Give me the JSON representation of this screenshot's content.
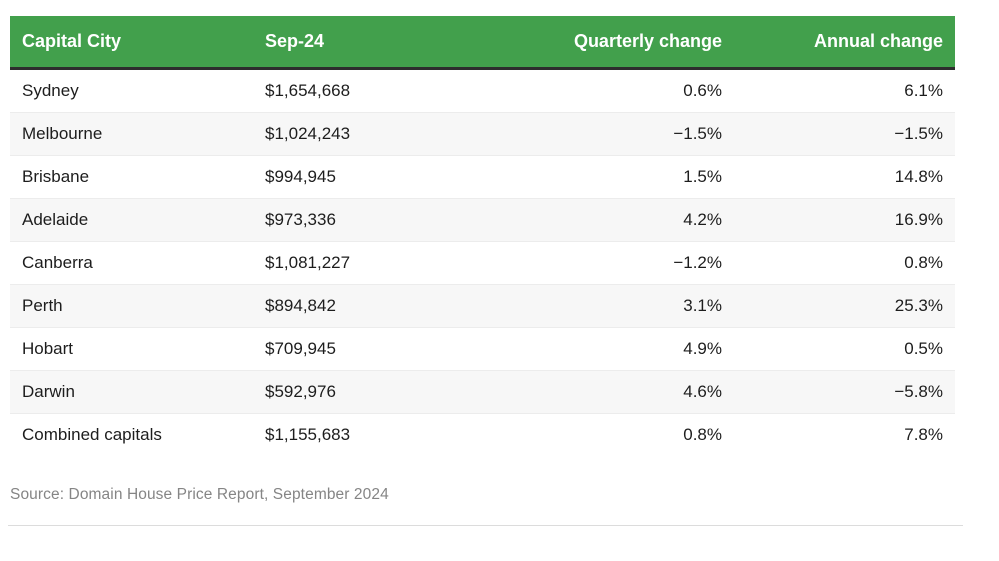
{
  "chart_data": {
    "type": "table",
    "columns": [
      "Capital City",
      "Sep-24",
      "Quarterly change",
      "Annual change"
    ],
    "rows": [
      [
        "Sydney",
        "$1,654,668",
        "0.6%",
        "6.1%"
      ],
      [
        "Melbourne",
        "$1,024,243",
        "−1.5%",
        "−1.5%"
      ],
      [
        "Brisbane",
        "$994,945",
        "1.5%",
        "14.8%"
      ],
      [
        "Adelaide",
        "$973,336",
        "4.2%",
        "16.9%"
      ],
      [
        "Canberra",
        "$1,081,227",
        "−1.2%",
        "0.8%"
      ],
      [
        "Perth",
        "$894,842",
        "3.1%",
        "25.3%"
      ],
      [
        "Hobart",
        "$709,945",
        "4.9%",
        "0.5%"
      ],
      [
        "Darwin",
        "$592,976",
        "4.6%",
        "−5.8%"
      ],
      [
        "Combined capitals",
        "$1,155,683",
        "0.8%",
        "7.8%"
      ]
    ],
    "source": "Source: Domain House Price Report, September 2024",
    "layout_hints": {
      "alternating_rows": true,
      "value_columns_alignment": "right"
    }
  },
  "colors": {
    "header_bg": "#42a04c",
    "header_text": "#ffffff",
    "header_bottom_border": "#2d2d2d",
    "alt_row_bg": "#f7f7f7",
    "body_text": "#1d1d1d",
    "source_text": "#858585"
  }
}
